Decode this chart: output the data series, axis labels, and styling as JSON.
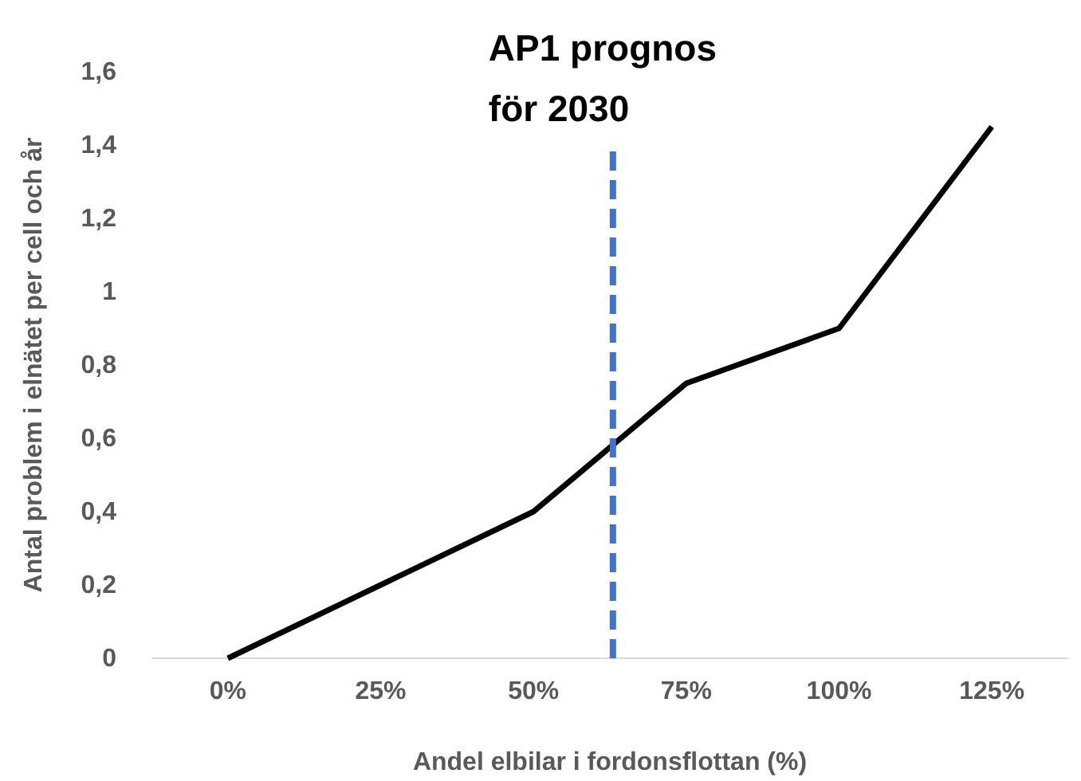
{
  "chart_data": {
    "type": "line",
    "xlabel": "Andel elbilar i fordonsflottan (%)",
    "ylabel": "Antal problem i elnätet per cell och år",
    "x": [
      0,
      25,
      50,
      75,
      100,
      125
    ],
    "series": [
      {
        "color": "#000000",
        "values": [
          0,
          0.2,
          0.4,
          0.75,
          0.9,
          1.45
        ]
      }
    ],
    "xlim": [
      -12.5,
      137.5
    ],
    "xticks": [
      {
        "value": 0,
        "label": "0%"
      },
      {
        "value": 25,
        "label": "25%"
      },
      {
        "value": 50,
        "label": "50%"
      },
      {
        "value": 75,
        "label": "75%"
      },
      {
        "value": 100,
        "label": "100%"
      },
      {
        "value": 125,
        "label": "125%"
      }
    ],
    "ylim": [
      0,
      1.6
    ],
    "yticks": [
      0,
      {
        "value": 0.2,
        "label": "0,2"
      },
      {
        "value": 0.4,
        "label": "0,4"
      },
      {
        "value": 0.6,
        "label": "0,6"
      },
      {
        "value": 0.8,
        "label": "0,8"
      },
      1,
      {
        "value": 1.2,
        "label": "1,2"
      },
      {
        "value": 1.4,
        "label": "1,4"
      },
      {
        "value": 1.6,
        "label": "1,6"
      }
    ],
    "ref_lines": [
      {
        "axis": "x",
        "value": 63,
        "label": "AP1 prognos för 2030",
        "color": "#4472c4",
        "line_style": "dashed"
      }
    ],
    "grid": false,
    "marker": "none",
    "line_style": "solid"
  }
}
